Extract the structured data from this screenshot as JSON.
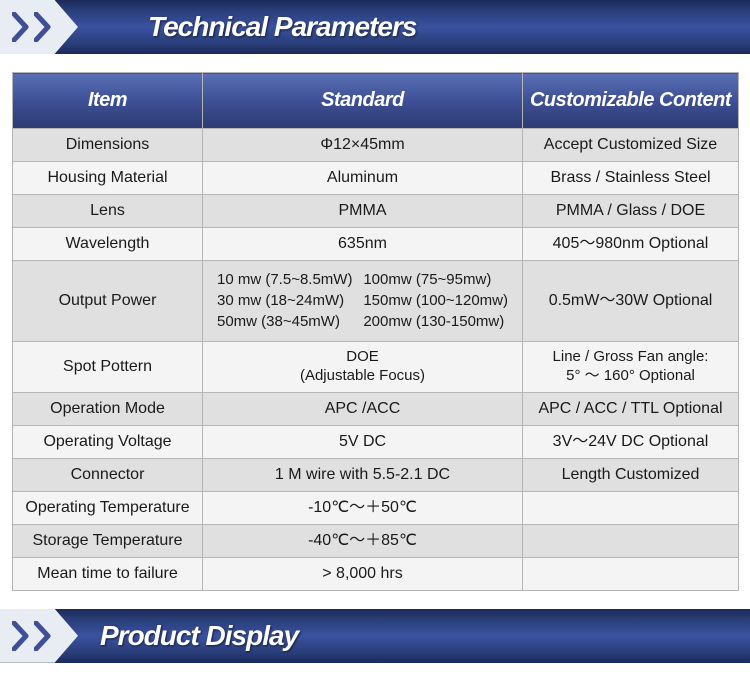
{
  "banners": {
    "top": "Technical Parameters",
    "bottom": "Product Display"
  },
  "colors": {
    "headerGradTop": "#5a6fb5",
    "headerGradMid": "#3d4f95",
    "headerGradBot": "#2d3a72",
    "bannerGradA": "#1a2a5a",
    "bannerGradB": "#3a52a0",
    "chevronBg": "#e8ecf3",
    "chevronStroke": "#3d4f95",
    "rowOdd": "#e0e0e0",
    "rowEven": "#f4f4f4",
    "border": "#b5b5b5",
    "text": "#1a1a1a",
    "headerText": "#ffffff"
  },
  "table": {
    "headers": {
      "item": "Item",
      "standard": "Standard",
      "custom": "Customizable Content"
    },
    "rows": [
      {
        "item": "Dimensions",
        "standard": "Φ12×45mm",
        "custom": "Accept Customized Size"
      },
      {
        "item": "Housing Material",
        "standard": "Aluminum",
        "custom": "Brass / Stainless Steel"
      },
      {
        "item": "Lens",
        "standard": "PMMA",
        "custom": "PMMA / Glass / DOE"
      },
      {
        "item": "Wavelength",
        "standard": "635nm",
        "custom": "405～980nm Optional"
      },
      {
        "item": "Output Power",
        "standard_grid": [
          "10 mw (7.5~8.5mW)",
          "100mw (75~95mw)",
          "30 mw (18~24mW)",
          "150mw (100~120mw)",
          "50mw (38~45mW)",
          "200mw (130-150mw)"
        ],
        "custom": "0.5mW～30W Optional"
      },
      {
        "item": "Spot Pottern",
        "standard_lines": [
          "DOE",
          "(Adjustable Focus)"
        ],
        "custom_lines": [
          "Line / Gross Fan angle:",
          "5° ～ 160° Optional"
        ]
      },
      {
        "item": "Operation Mode",
        "standard": "APC /ACC",
        "custom": "APC / ACC / TTL Optional"
      },
      {
        "item": "Operating  Voltage",
        "standard": "5V  DC",
        "custom": "3V～24V DC Optional"
      },
      {
        "item": "Connector",
        "standard": "1 M wire with 5.5-2.1 DC",
        "custom": "Length Customized"
      },
      {
        "item": "Operating Temperature",
        "standard": "-10℃～＋50℃",
        "custom": ""
      },
      {
        "item": "Storage Temperature",
        "standard": "-40℃～＋85℃",
        "custom": ""
      },
      {
        "item": "Mean time to failure",
        "standard": "> 8,000 hrs",
        "custom": ""
      }
    ]
  }
}
